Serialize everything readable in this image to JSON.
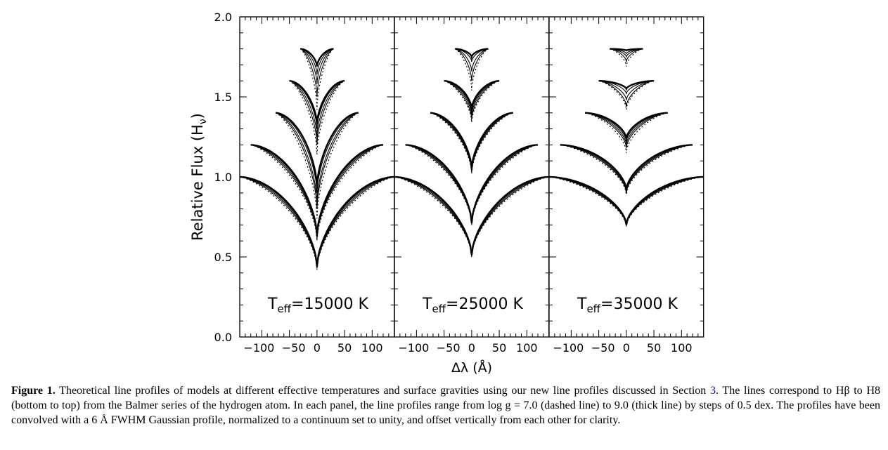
{
  "chart_data": {
    "type": "line",
    "ylabel": "Relative Flux (H",
    "ylabel_sub": "ν",
    "ylabel_close": ")",
    "xlabel": "Δλ (Å)",
    "ylim": [
      0,
      2
    ],
    "xlim": [
      -140,
      140
    ],
    "y_ticks": [
      "0.0",
      "0.5",
      "1.0",
      "1.5",
      "2.0"
    ],
    "x_ticks": [
      "−100",
      "−50",
      "0",
      "50",
      "100"
    ],
    "grid": false,
    "panels": [
      {
        "label_T": "T",
        "label_sub": "eff",
        "label_rest": "=15000  K",
        "lines": [
          {
            "name": "Hβ",
            "offset": 1.0,
            "halfwidth": 140,
            "depths": [
              0.58,
              0.572,
              0.566,
              0.562,
              0.558
            ]
          },
          {
            "name": "Hγ",
            "offset": 1.2,
            "halfwidth": 120,
            "depths": [
              0.6,
              0.585,
              0.575,
              0.568,
              0.565
            ]
          },
          {
            "name": "Hδ",
            "offset": 1.4,
            "halfwidth": 75,
            "depths": [
              0.66,
              0.6,
              0.56,
              0.5,
              0.46
            ]
          },
          {
            "name": "Hε",
            "offset": 1.6,
            "halfwidth": 50,
            "depths": [
              0.46,
              0.4,
              0.35,
              0.3,
              0.27
            ]
          },
          {
            "name": "H8",
            "offset": 1.8,
            "halfwidth": 30,
            "depths": [
              0.38,
              0.3,
              0.22,
              0.16,
              0.11
            ]
          }
        ]
      },
      {
        "label_T": "T",
        "label_sub": "eff",
        "label_rest": "=25000  K",
        "lines": [
          {
            "name": "Hβ",
            "offset": 1.0,
            "halfwidth": 140,
            "depths": [
              0.5,
              0.496,
              0.493,
              0.49,
              0.488
            ]
          },
          {
            "name": "Hγ",
            "offset": 1.2,
            "halfwidth": 120,
            "depths": [
              0.5,
              0.495,
              0.492,
              0.49,
              0.488
            ]
          },
          {
            "name": "Hδ",
            "offset": 1.4,
            "halfwidth": 75,
            "depths": [
              0.38,
              0.37,
              0.36,
              0.355,
              0.35
            ]
          },
          {
            "name": "Hε",
            "offset": 1.6,
            "halfwidth": 50,
            "depths": [
              0.26,
              0.24,
              0.215,
              0.195,
              0.175
            ]
          },
          {
            "name": "H8",
            "offset": 1.8,
            "halfwidth": 30,
            "depths": [
              0.26,
              0.2,
              0.14,
              0.08,
              0.05
            ]
          }
        ]
      },
      {
        "label_T": "T",
        "label_sub": "eff",
        "label_rest": "=35000  K",
        "lines": [
          {
            "name": "Hβ",
            "offset": 1.0,
            "halfwidth": 140,
            "depths": [
              0.31,
              0.305,
              0.302,
              0.3,
              0.298
            ]
          },
          {
            "name": "Hγ",
            "offset": 1.2,
            "halfwidth": 120,
            "depths": [
              0.31,
              0.3,
              0.292,
              0.285,
              0.28
            ]
          },
          {
            "name": "Hδ",
            "offset": 1.4,
            "halfwidth": 75,
            "depths": [
              0.25,
              0.22,
              0.2,
              0.18,
              0.16
            ]
          },
          {
            "name": "Hε",
            "offset": 1.6,
            "halfwidth": 50,
            "depths": [
              0.18,
              0.16,
              0.12,
              0.08,
              0.05
            ]
          },
          {
            "name": "H8",
            "offset": 1.8,
            "halfwidth": 30,
            "depths": [
              0.11,
              0.08,
              0.05,
              0.03,
              0.01
            ]
          }
        ]
      }
    ]
  },
  "caption": {
    "label": "Figure 1.",
    "text_1": " Theoretical line profiles of models at different effective temperatures and surface gravities using our new line profiles discussed in Section ",
    "ref": "3",
    "text_2": ". The lines correspond to Hβ to H8 (bottom to top) from the Balmer series of the hydrogen atom. In each panel, the line profiles range from log g = 7.0 (dashed line) to 9.0 (thick line) by steps of 0.5 dex. The profiles have been convolved with a 6 Å FWHM Gaussian profile, normalized to a continuum set to unity, and offset vertically from each other for clarity."
  }
}
